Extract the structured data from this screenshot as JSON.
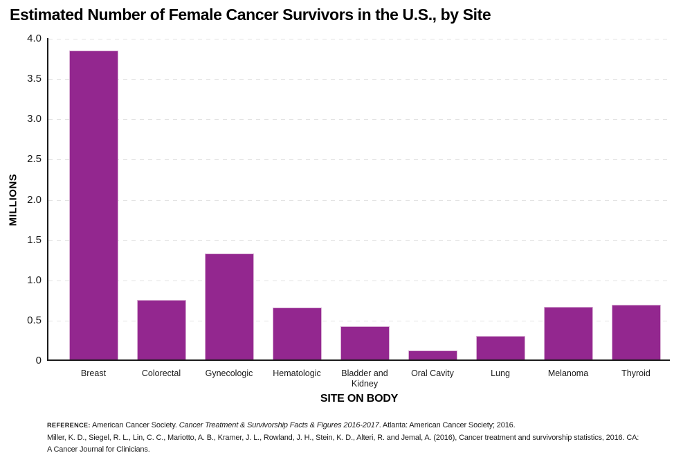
{
  "header": {
    "title": "Estimated Number of Female Cancer Survivors in the U.S., by Site"
  },
  "chart_data": {
    "type": "bar",
    "title": "Estimated Number of Female Cancer Survivors in the U.S., by Site",
    "categories": [
      "Breast",
      "Colorectal",
      "Gynecologic",
      "Hematologic",
      "Bladder and Kidney",
      "Oral Cavity",
      "Lung",
      "Melanoma",
      "Thyroid"
    ],
    "values": [
      3.85,
      0.76,
      1.33,
      0.66,
      0.43,
      0.13,
      0.31,
      0.67,
      0.7
    ],
    "xlabel": "SITE ON BODY",
    "ylabel": "MILLIONS",
    "ylim": [
      0,
      4.0
    ],
    "ytick_step": 0.5,
    "ytick_labels": [
      "0",
      "0.5",
      "1.0",
      "1.5",
      "2.0",
      "2.5",
      "3.0",
      "3.5",
      "4.0"
    ],
    "grid": "horizontal-dashed",
    "legend_position": "none",
    "bar_color": "#93278F",
    "bar_edge_color": "#d9b2d5",
    "gridline_color": "#e3e3e3",
    "axis_color": "#1a1a1a"
  },
  "footer": {
    "reference_label": "REFERENCE:",
    "reference_text_before_italic": " American Cancer Society. ",
    "reference_italic_title": "Cancer Treatment & Survivorship Facts & Figures 2016-2017",
    "reference_text_after_italic": ". Atlanta: American Cancer Society; 2016.",
    "citation_line_2": "Miller, K. D., Siegel, R. L., Lin, C. C., Mariotto, A. B., Kramer, J. L., Rowland, J. H., Stein, K. D., Alteri, R. and Jemal, A. (2016), Cancer treatment and survivorship statistics, 2016. CA:",
    "citation_line_3": "A Cancer Journal for Clinicians."
  }
}
